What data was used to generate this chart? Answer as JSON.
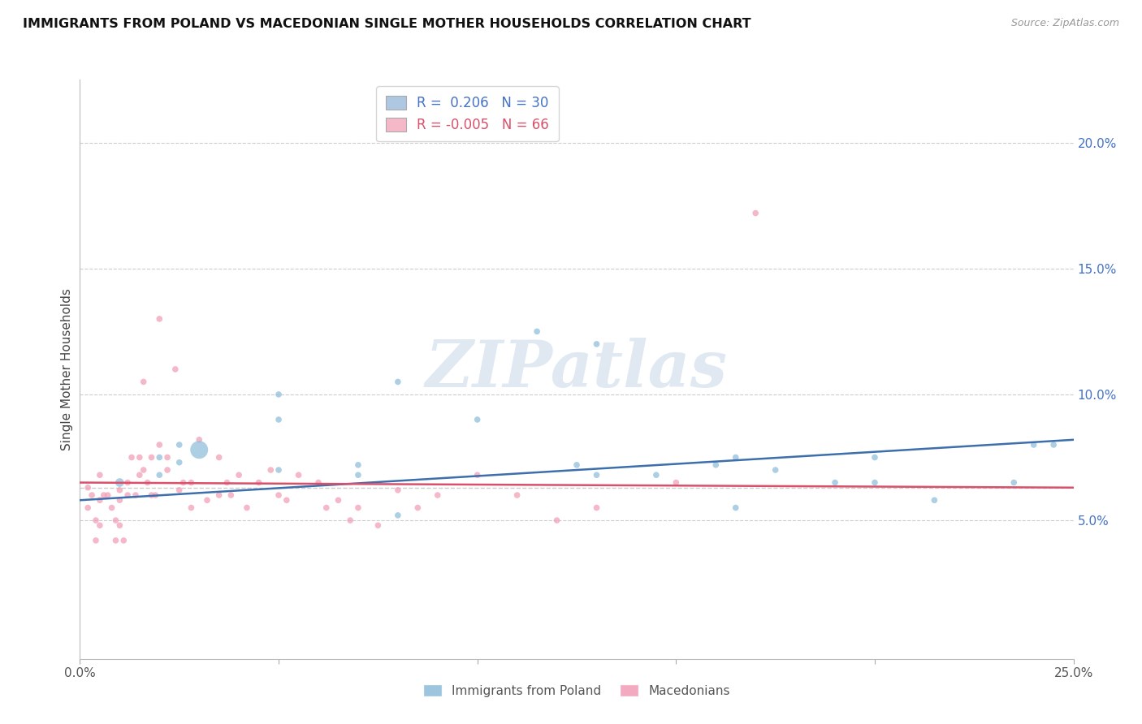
{
  "title": "IMMIGRANTS FROM POLAND VS MACEDONIAN SINGLE MOTHER HOUSEHOLDS CORRELATION CHART",
  "source": "Source: ZipAtlas.com",
  "ylabel": "Single Mother Households",
  "legend_label1": "Immigrants from Poland",
  "legend_label2": "Macedonians",
  "r1": 0.206,
  "n1": 30,
  "r2": -0.005,
  "n2": 66,
  "xlim": [
    0.0,
    0.25
  ],
  "ylim": [
    -0.005,
    0.225
  ],
  "xticks": [
    0.0,
    0.05,
    0.1,
    0.15,
    0.2,
    0.25
  ],
  "yticks": [
    0.05,
    0.1,
    0.15,
    0.2
  ],
  "color_blue": "#92bfdb",
  "color_pink": "#f2a0b8",
  "color_blue_line": "#3d6fad",
  "color_pink_line": "#d9506a",
  "watermark_text": "ZIPatlas",
  "blue_scatter_x": [
    0.01,
    0.02,
    0.02,
    0.025,
    0.025,
    0.03,
    0.05,
    0.05,
    0.07,
    0.08,
    0.1,
    0.115,
    0.125,
    0.13,
    0.145,
    0.16,
    0.165,
    0.175,
    0.19,
    0.2,
    0.215,
    0.235,
    0.24,
    0.2,
    0.165,
    0.13,
    0.08,
    0.07,
    0.05,
    0.245
  ],
  "blue_scatter_y": [
    0.065,
    0.068,
    0.075,
    0.073,
    0.08,
    0.078,
    0.09,
    0.1,
    0.072,
    0.105,
    0.09,
    0.125,
    0.072,
    0.12,
    0.068,
    0.072,
    0.055,
    0.07,
    0.065,
    0.075,
    0.058,
    0.065,
    0.08,
    0.065,
    0.075,
    0.068,
    0.052,
    0.068,
    0.07,
    0.08
  ],
  "blue_scatter_sizes": [
    60,
    30,
    30,
    30,
    30,
    250,
    30,
    30,
    30,
    30,
    30,
    30,
    30,
    30,
    30,
    30,
    30,
    30,
    30,
    30,
    30,
    30,
    30,
    30,
    30,
    30,
    30,
    30,
    30,
    30
  ],
  "pink_scatter_x": [
    0.002,
    0.002,
    0.003,
    0.004,
    0.004,
    0.005,
    0.005,
    0.005,
    0.006,
    0.007,
    0.008,
    0.009,
    0.009,
    0.01,
    0.01,
    0.01,
    0.011,
    0.012,
    0.012,
    0.013,
    0.014,
    0.015,
    0.015,
    0.016,
    0.016,
    0.017,
    0.018,
    0.018,
    0.019,
    0.02,
    0.022,
    0.022,
    0.024,
    0.025,
    0.026,
    0.028,
    0.028,
    0.03,
    0.032,
    0.035,
    0.035,
    0.037,
    0.038,
    0.04,
    0.042,
    0.045,
    0.048,
    0.05,
    0.052,
    0.055,
    0.06,
    0.062,
    0.065,
    0.068,
    0.07,
    0.075,
    0.08,
    0.085,
    0.09,
    0.1,
    0.11,
    0.12,
    0.13,
    0.15,
    0.17,
    0.02
  ],
  "pink_scatter_y": [
    0.063,
    0.055,
    0.06,
    0.05,
    0.042,
    0.068,
    0.058,
    0.048,
    0.06,
    0.06,
    0.055,
    0.05,
    0.042,
    0.062,
    0.058,
    0.048,
    0.042,
    0.065,
    0.06,
    0.075,
    0.06,
    0.075,
    0.068,
    0.105,
    0.07,
    0.065,
    0.06,
    0.075,
    0.06,
    0.08,
    0.07,
    0.075,
    0.11,
    0.062,
    0.065,
    0.065,
    0.055,
    0.082,
    0.058,
    0.075,
    0.06,
    0.065,
    0.06,
    0.068,
    0.055,
    0.065,
    0.07,
    0.06,
    0.058,
    0.068,
    0.065,
    0.055,
    0.058,
    0.05,
    0.055,
    0.048,
    0.062,
    0.055,
    0.06,
    0.068,
    0.06,
    0.05,
    0.055,
    0.065,
    0.172,
    0.13
  ],
  "pink_scatter_sizes": [
    30,
    30,
    30,
    30,
    30,
    30,
    30,
    30,
    30,
    30,
    30,
    30,
    30,
    30,
    30,
    30,
    30,
    30,
    30,
    30,
    30,
    30,
    30,
    30,
    30,
    30,
    30,
    30,
    30,
    30,
    30,
    30,
    30,
    30,
    30,
    30,
    30,
    30,
    30,
    30,
    30,
    30,
    30,
    30,
    30,
    30,
    30,
    30,
    30,
    30,
    30,
    30,
    30,
    30,
    30,
    30,
    30,
    30,
    30,
    30,
    30,
    30,
    30,
    30,
    30,
    30
  ]
}
